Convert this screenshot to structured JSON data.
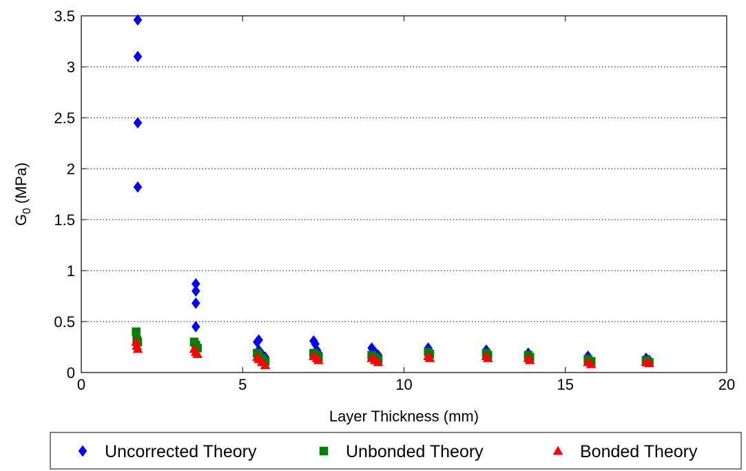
{
  "chart_data": {
    "type": "scatter",
    "title": "",
    "xlabel": "Layer Thickness (mm)",
    "ylabel_main": "G",
    "ylabel_sub": "0",
    "ylabel_unit": " (MPa)",
    "xlim": [
      0,
      20
    ],
    "ylim": [
      0,
      3.5
    ],
    "xticks": [
      0,
      5,
      10,
      15,
      20
    ],
    "xtick_labels": [
      "0",
      "5",
      "10",
      "15",
      "20"
    ],
    "yticks": [
      0,
      0.5,
      1,
      1.5,
      2,
      2.5,
      3,
      3.5
    ],
    "ytick_labels": [
      "0",
      "0.5",
      "1",
      "1.5",
      "2",
      "2.5",
      "3",
      "3.5"
    ],
    "grid": "horizontal dotted",
    "legend_position": "bottom, outside plot",
    "series": [
      {
        "name": "Uncorrected Theory",
        "marker": "diamond",
        "color": "#0000ff",
        "points": [
          [
            1.75,
            3.46
          ],
          [
            1.75,
            3.1
          ],
          [
            1.75,
            2.45
          ],
          [
            1.75,
            1.82
          ],
          [
            3.55,
            0.87
          ],
          [
            3.55,
            0.8
          ],
          [
            3.55,
            0.68
          ],
          [
            3.55,
            0.45
          ],
          [
            5.45,
            0.3
          ],
          [
            5.5,
            0.32
          ],
          [
            5.5,
            0.22
          ],
          [
            5.6,
            0.18
          ],
          [
            5.7,
            0.15
          ],
          [
            7.2,
            0.31
          ],
          [
            7.25,
            0.28
          ],
          [
            7.3,
            0.22
          ],
          [
            7.35,
            0.19
          ],
          [
            9.0,
            0.24
          ],
          [
            9.1,
            0.2
          ],
          [
            9.2,
            0.17
          ],
          [
            10.75,
            0.24
          ],
          [
            10.8,
            0.2
          ],
          [
            12.55,
            0.22
          ],
          [
            12.6,
            0.18
          ],
          [
            13.85,
            0.19
          ],
          [
            13.9,
            0.16
          ],
          [
            15.7,
            0.16
          ],
          [
            15.75,
            0.13
          ],
          [
            17.5,
            0.14
          ],
          [
            17.6,
            0.12
          ]
        ]
      },
      {
        "name": "Unbonded Theory",
        "marker": "square",
        "color": "#008000",
        "points": [
          [
            1.7,
            0.4
          ],
          [
            1.72,
            0.32
          ],
          [
            1.75,
            0.3
          ],
          [
            3.5,
            0.3
          ],
          [
            3.55,
            0.27
          ],
          [
            3.6,
            0.24
          ],
          [
            5.45,
            0.19
          ],
          [
            5.5,
            0.17
          ],
          [
            5.6,
            0.14
          ],
          [
            5.7,
            0.11
          ],
          [
            7.2,
            0.19
          ],
          [
            7.3,
            0.17
          ],
          [
            7.35,
            0.15
          ],
          [
            9.0,
            0.17
          ],
          [
            9.1,
            0.15
          ],
          [
            9.2,
            0.13
          ],
          [
            10.75,
            0.2
          ],
          [
            10.8,
            0.18
          ],
          [
            12.55,
            0.19
          ],
          [
            12.6,
            0.17
          ],
          [
            13.85,
            0.17
          ],
          [
            13.9,
            0.15
          ],
          [
            15.7,
            0.13
          ],
          [
            15.8,
            0.11
          ],
          [
            17.5,
            0.12
          ],
          [
            17.6,
            0.1
          ]
        ]
      },
      {
        "name": "Bonded Theory",
        "marker": "triangle",
        "color": "#ff0000",
        "points": [
          [
            1.7,
            0.3
          ],
          [
            1.72,
            0.26
          ],
          [
            1.75,
            0.23
          ],
          [
            3.5,
            0.23
          ],
          [
            3.55,
            0.2
          ],
          [
            3.6,
            0.18
          ],
          [
            5.45,
            0.15
          ],
          [
            5.5,
            0.13
          ],
          [
            5.6,
            0.1
          ],
          [
            5.7,
            0.07
          ],
          [
            7.2,
            0.16
          ],
          [
            7.3,
            0.14
          ],
          [
            7.35,
            0.12
          ],
          [
            9.0,
            0.14
          ],
          [
            9.1,
            0.12
          ],
          [
            9.2,
            0.1
          ],
          [
            10.75,
            0.16
          ],
          [
            10.8,
            0.14
          ],
          [
            12.55,
            0.16
          ],
          [
            12.6,
            0.14
          ],
          [
            13.85,
            0.14
          ],
          [
            13.9,
            0.12
          ],
          [
            15.7,
            0.1
          ],
          [
            15.8,
            0.08
          ],
          [
            17.5,
            0.1
          ],
          [
            17.6,
            0.09
          ]
        ]
      }
    ]
  }
}
